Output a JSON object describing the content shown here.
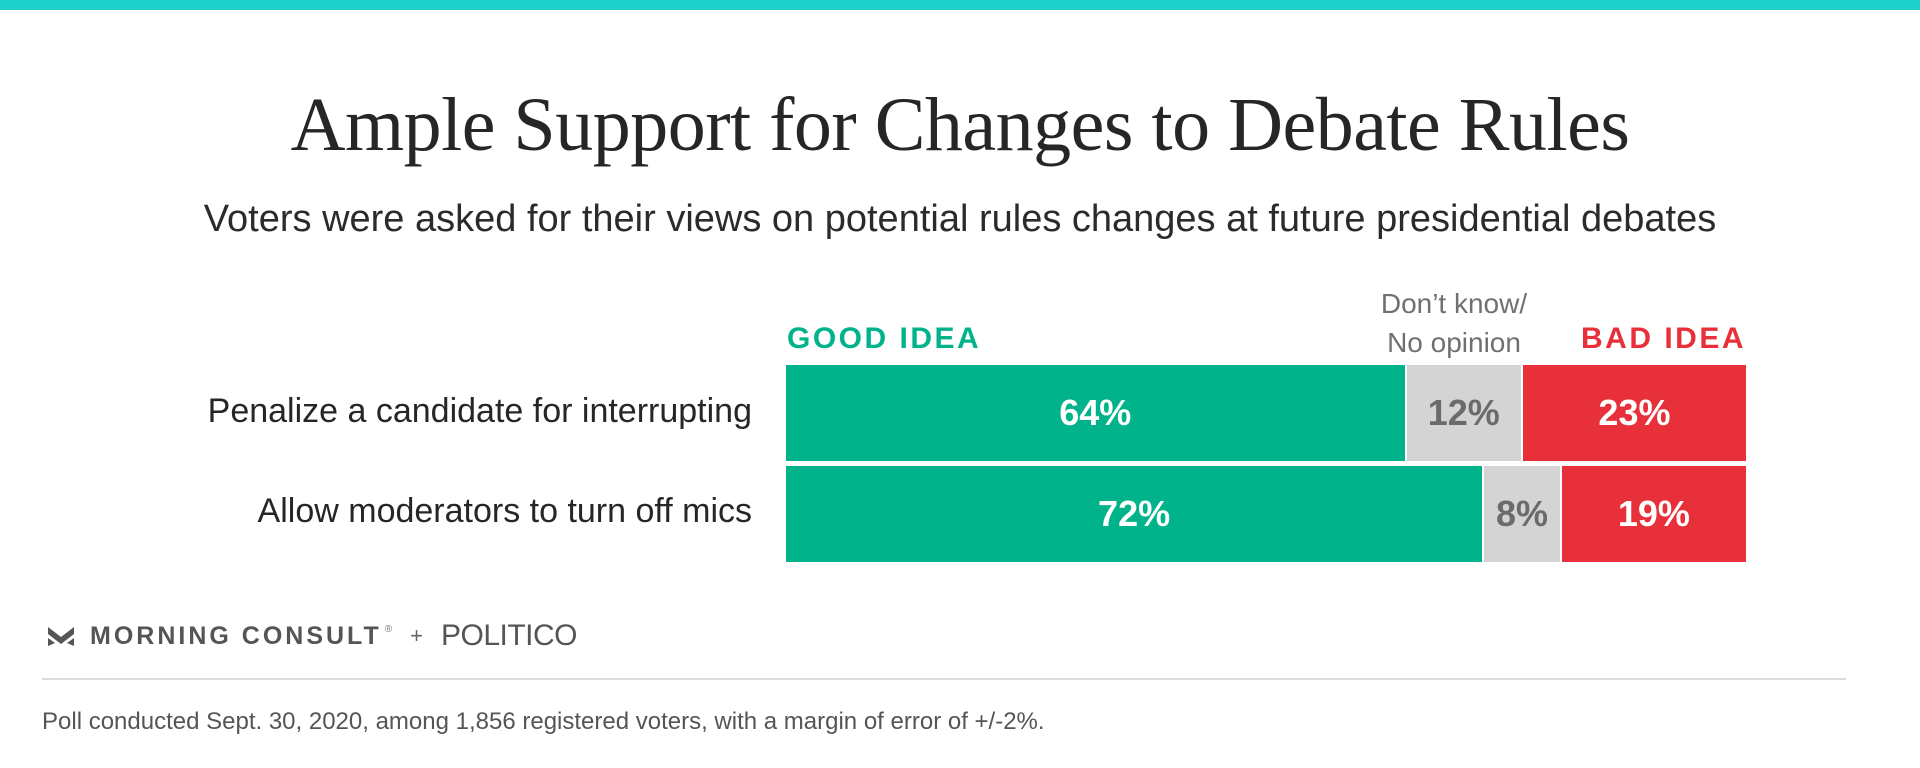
{
  "header": {
    "title": "Ample Support for Changes to Debate Rules",
    "subtitle": "Voters were asked for their views on potential rules changes at future presidential debates"
  },
  "legend": {
    "good": "GOOD IDEA",
    "neutral_line1": "Don’t know/",
    "neutral_line2": "No opinion",
    "bad": "BAD IDEA"
  },
  "chart_data": {
    "type": "bar",
    "orientation": "horizontal",
    "stacked": true,
    "title": "Ample Support for Changes to Debate Rules",
    "subtitle": "Voters were asked for their views on potential rules changes at future presidential debates",
    "categories": [
      "Penalize a candidate for interrupting",
      "Allow moderators to turn off mics"
    ],
    "series": [
      {
        "name": "GOOD IDEA",
        "values": [
          64,
          72
        ],
        "color": "#00b38a"
      },
      {
        "name": "Don’t know/ No opinion",
        "values": [
          12,
          8
        ],
        "color": "#d4d4d4"
      },
      {
        "name": "BAD IDEA",
        "values": [
          23,
          19
        ],
        "color": "#e8303a"
      }
    ],
    "value_labels": [
      [
        "64%",
        "12%",
        "23%"
      ],
      [
        "72%",
        "8%",
        "19%"
      ]
    ],
    "legend_position": "top",
    "grid": false
  },
  "footer": {
    "brand": "MORNING CONSULT",
    "registered": "®",
    "plus": "+",
    "partner": "POLITICO",
    "note": "Poll conducted Sept. 30, 2020, among 1,856 registered voters, with a margin of error of +/-2%."
  },
  "colors": {
    "accent_top": "#1fd1cb",
    "good": "#00b38a",
    "neutral": "#d4d4d4",
    "bad": "#e8303a"
  },
  "icons": {
    "brand_logo": "morning-consult-logo-icon"
  }
}
